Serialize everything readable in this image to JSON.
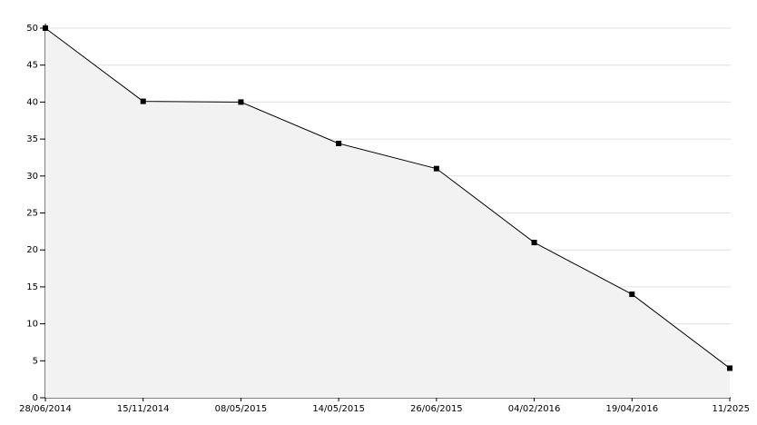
{
  "chart_data": {
    "type": "area",
    "categories": [
      "28/06/2014",
      "15/11/2014",
      "08/05/2015",
      "14/05/2015",
      "26/06/2015",
      "04/02/2016",
      "19/04/2016",
      "11/2025"
    ],
    "values": [
      50,
      40.1,
      40,
      34.4,
      31,
      21,
      14,
      4
    ],
    "color": "#000000",
    "fill": "#f2f2f2",
    "ylim": [
      0,
      50
    ],
    "yticks": [
      0,
      5,
      10,
      15,
      20,
      25,
      30,
      35,
      40,
      45,
      50
    ],
    "grid": true
  }
}
